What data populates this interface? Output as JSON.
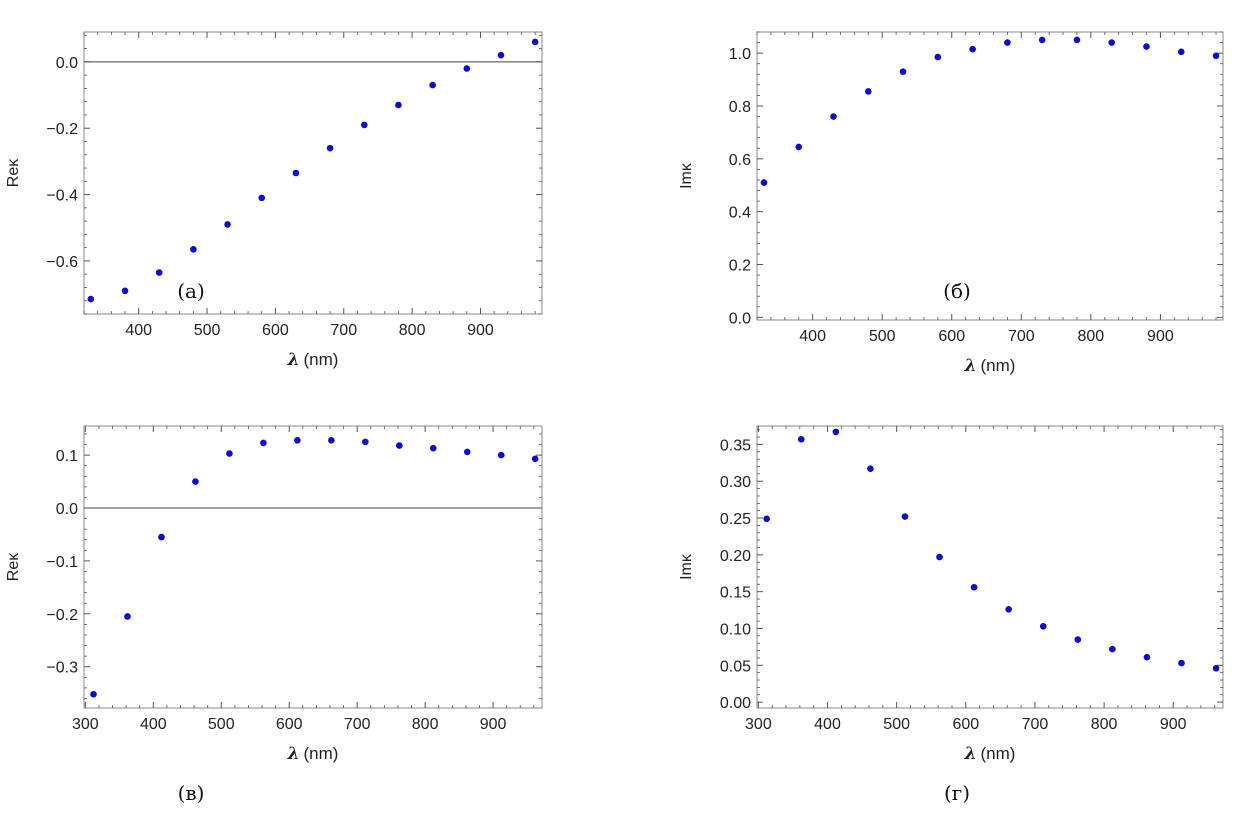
{
  "chart_data": [
    {
      "type": "scatter",
      "panel_label": "(а)",
      "xlabel_symbol": "λ",
      "xlabel_unit": "(nm)",
      "ylabel": "Reκ",
      "xlim": [
        320,
        990
      ],
      "ylim": [
        -0.76,
        0.09
      ],
      "xticks": [
        400,
        500,
        600,
        700,
        800,
        900
      ],
      "yticks": [
        -0.6,
        -0.4,
        -0.2,
        0.0
      ],
      "ytick_labels": [
        "−0.6",
        "−0.4",
        "−0.2",
        "0.0"
      ],
      "zero_line": true,
      "color": "#0a0ad2",
      "series": [
        {
          "name": "Reκ",
          "x": [
            330,
            380,
            430,
            480,
            530,
            580,
            630,
            680,
            730,
            780,
            830,
            880,
            930,
            980
          ],
          "y": [
            -0.715,
            -0.69,
            -0.635,
            -0.565,
            -0.49,
            -0.41,
            -0.335,
            -0.26,
            -0.19,
            -0.13,
            -0.07,
            -0.02,
            0.02,
            0.06
          ]
        }
      ]
    },
    {
      "type": "scatter",
      "panel_label": "(б)",
      "xlabel_symbol": "λ",
      "xlabel_unit": "(nm)",
      "ylabel": "Imκ",
      "xlim": [
        320,
        990
      ],
      "ylim": [
        -0.01,
        1.08
      ],
      "xticks": [
        400,
        500,
        600,
        700,
        800,
        900
      ],
      "yticks": [
        0.0,
        0.2,
        0.4,
        0.6,
        0.8,
        1.0
      ],
      "ytick_labels": [
        "0.0",
        "0.2",
        "0.4",
        "0.6",
        "0.8",
        "1.0"
      ],
      "zero_line": false,
      "color": "#0a0ad2",
      "series": [
        {
          "name": "Imκ",
          "x": [
            330,
            380,
            430,
            480,
            530,
            580,
            630,
            680,
            730,
            780,
            830,
            880,
            930,
            980
          ],
          "y": [
            0.51,
            0.645,
            0.76,
            0.855,
            0.93,
            0.985,
            1.015,
            1.04,
            1.05,
            1.05,
            1.04,
            1.025,
            1.005,
            0.99
          ]
        }
      ]
    },
    {
      "type": "scatter",
      "panel_label": "(в)",
      "xlabel_symbol": "λ",
      "xlabel_unit": "(nm)",
      "ylabel": "Reκ",
      "xlim": [
        298,
        972
      ],
      "ylim": [
        -0.378,
        0.155
      ],
      "xticks": [
        300,
        400,
        500,
        600,
        700,
        800,
        900
      ],
      "yticks": [
        -0.3,
        -0.2,
        -0.1,
        0.0,
        0.1
      ],
      "ytick_labels": [
        "−0.3",
        "−0.2",
        "−0.1",
        "0.0",
        "0.1"
      ],
      "zero_line": true,
      "color": "#0a0ad2",
      "series": [
        {
          "name": "Reκ",
          "x": [
            312,
            362,
            412,
            462,
            512,
            562,
            612,
            662,
            712,
            762,
            812,
            862,
            912,
            962
          ],
          "y": [
            -0.352,
            -0.205,
            -0.055,
            0.05,
            0.103,
            0.123,
            0.128,
            0.128,
            0.125,
            0.118,
            0.113,
            0.106,
            0.1,
            0.093
          ]
        }
      ]
    },
    {
      "type": "scatter",
      "panel_label": "(г)",
      "xlabel_symbol": "λ",
      "xlabel_unit": "(nm)",
      "ylabel": "Imκ",
      "xlim": [
        298,
        972
      ],
      "ylim": [
        -0.008,
        0.375
      ],
      "xticks": [
        300,
        400,
        500,
        600,
        700,
        800,
        900
      ],
      "yticks": [
        0.0,
        0.05,
        0.1,
        0.15,
        0.2,
        0.25,
        0.3,
        0.35
      ],
      "ytick_labels": [
        "0.00",
        "0.05",
        "0.10",
        "0.15",
        "0.20",
        "0.25",
        "0.30",
        "0.35"
      ],
      "zero_line": false,
      "color": "#0a0ad2",
      "series": [
        {
          "name": "Imκ",
          "x": [
            312,
            362,
            412,
            462,
            512,
            562,
            612,
            662,
            712,
            762,
            812,
            862,
            912,
            962
          ],
          "y": [
            0.249,
            0.357,
            0.367,
            0.317,
            0.252,
            0.197,
            0.156,
            0.126,
            0.103,
            0.085,
            0.072,
            0.061,
            0.053,
            0.046
          ]
        }
      ]
    }
  ]
}
